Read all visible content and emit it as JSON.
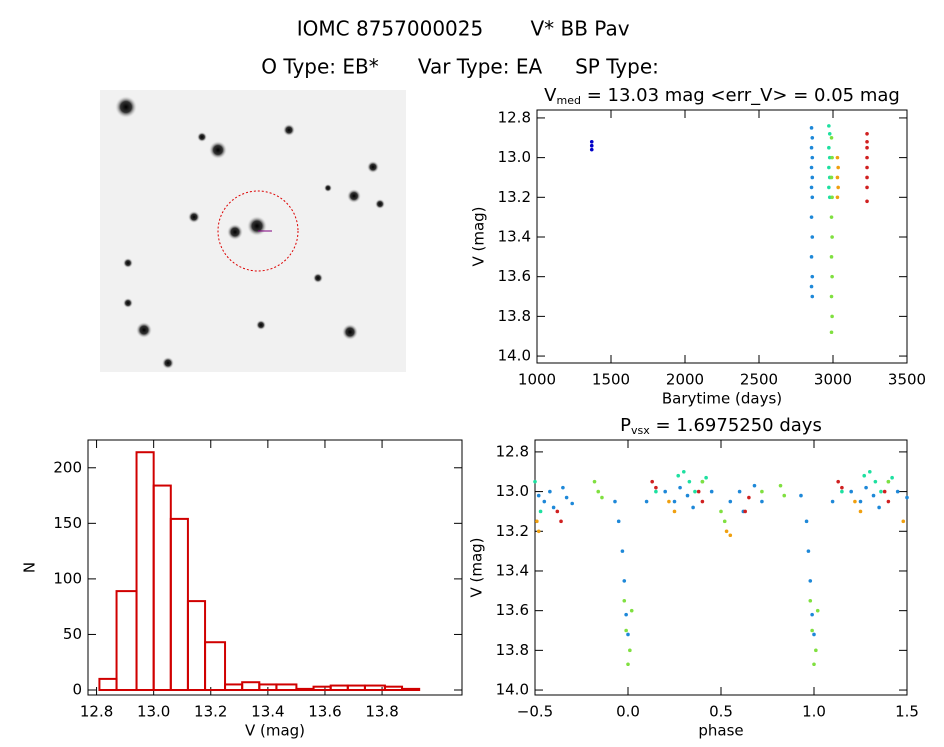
{
  "header": {
    "line1": [
      "IOMC 8757000025",
      "V* BB Pav"
    ],
    "line2": [
      "O Type: EB*",
      "Var Type: EA",
      "SP Type:"
    ]
  },
  "chart_data": [
    {
      "type": "scatter",
      "title": {
        "base": "V",
        "sub": "med",
        "rest": " = 13.03 mag <err_V> = 0.05 mag"
      },
      "xlabel": "Barytime (days)",
      "ylabel": "V (mag)",
      "xlim": [
        1000,
        3500
      ],
      "xticks": [
        1000,
        1500,
        2000,
        2500,
        3000,
        3500
      ],
      "ylim": [
        12.76,
        14.035
      ],
      "y_inverted": true,
      "yticks": [
        12.8,
        {
          "value": 13,
          "label": "13.0"
        },
        13.2,
        13.4,
        13.6,
        13.8,
        {
          "value": 14,
          "label": "14.0"
        }
      ],
      "series": [
        {
          "color": "#0000c8",
          "x": [
            1370,
            1370,
            1370
          ],
          "values": [
            12.92,
            12.94,
            12.96
          ]
        },
        {
          "color": "#1e88d8",
          "x": [
            2855,
            2860,
            2855,
            2860,
            2855,
            2860,
            2855,
            2860,
            2855,
            2860,
            2855,
            2860,
            2855,
            2860
          ],
          "values": [
            12.85,
            12.9,
            12.95,
            13.0,
            13.05,
            13.1,
            13.15,
            13.2,
            13.3,
            13.4,
            13.5,
            13.6,
            13.65,
            13.7
          ]
        },
        {
          "color": "#1ee0a0",
          "x": [
            2972,
            2978,
            2972,
            2978,
            2972,
            2978,
            2972,
            2978
          ],
          "values": [
            12.84,
            12.88,
            12.95,
            13.0,
            13.05,
            13.1,
            13.15,
            13.2
          ]
        },
        {
          "color": "#80e040",
          "x": [
            2990,
            2994,
            2990,
            2994,
            2990,
            2994,
            2990,
            2994,
            2990,
            2994,
            2990
          ],
          "values": [
            12.9,
            13.0,
            13.1,
            13.2,
            13.3,
            13.4,
            13.5,
            13.6,
            13.7,
            13.8,
            13.88
          ]
        },
        {
          "color": "#f0a010",
          "x": [
            3030,
            3035,
            3030,
            3035,
            3030
          ],
          "values": [
            13.0,
            13.05,
            13.1,
            13.15,
            13.2
          ]
        },
        {
          "color": "#d02020",
          "x": [
            3230,
            3230,
            3230,
            3230,
            3230,
            3230,
            3230,
            3230
          ],
          "values": [
            12.88,
            12.92,
            12.95,
            13.0,
            13.05,
            13.1,
            13.15,
            13.22
          ]
        }
      ]
    },
    {
      "type": "histogram",
      "xlabel": "V (mag)",
      "ylabel": "N",
      "color": "#d00000",
      "xlim": [
        12.77,
        14.08
      ],
      "xticks": [
        12.8,
        {
          "value": 13,
          "label": "13.0"
        },
        13.2,
        13.4,
        13.6,
        13.8
      ],
      "ylim": [
        -4.5,
        225
      ],
      "yticks": [
        0,
        50,
        100,
        150,
        200
      ],
      "bins": [
        12.81,
        12.87,
        12.94,
        13.0,
        13.06,
        13.12,
        13.18,
        13.25,
        13.31,
        13.37,
        13.43,
        13.5,
        13.56,
        13.62,
        13.68,
        13.74,
        13.81,
        13.87,
        13.93
      ],
      "values": [
        10,
        89,
        214,
        184,
        154,
        80,
        43,
        5,
        7,
        5,
        5,
        1,
        3,
        4,
        4,
        4,
        3,
        1
      ]
    },
    {
      "type": "scatter",
      "title": {
        "base": "P",
        "sub": "vsx",
        "rest": " = 1.6975250 days"
      },
      "xlabel": "phase",
      "ylabel": "V (mag)",
      "xlim": [
        -0.5,
        1.5
      ],
      "xticks": [
        {
          "value": -0.5,
          "label": "−0.5"
        },
        {
          "value": 0,
          "label": "0.0"
        },
        0.5,
        {
          "value": 1,
          "label": "1.0"
        },
        1.5
      ],
      "ylim": [
        12.74,
        14.025
      ],
      "y_inverted": true,
      "yticks": [
        12.8,
        {
          "value": 13,
          "label": "13.0"
        },
        13.2,
        13.4,
        13.6,
        13.8,
        {
          "value": 14,
          "label": "14.0"
        }
      ],
      "series": [
        {
          "color": "#1e88d8",
          "x": [
            -0.48,
            -0.45,
            -0.42,
            -0.4,
            -0.35,
            -0.33,
            -0.3,
            -0.07,
            -0.05,
            -0.03,
            -0.02,
            -0.01,
            0.0,
            0.1,
            0.2,
            0.25,
            0.28,
            0.32,
            0.35,
            0.45,
            0.55,
            0.6,
            0.62,
            0.68,
            0.72,
            0.93,
            0.96,
            0.97,
            0.98,
            0.99,
            1.0,
            1.1,
            1.2,
            1.25,
            1.28,
            1.32,
            1.35,
            1.45,
            1.5
          ],
          "values": [
            13.02,
            13.05,
            13.0,
            13.08,
            12.98,
            13.03,
            13.06,
            13.05,
            13.15,
            13.3,
            13.45,
            13.62,
            13.72,
            13.05,
            13.0,
            13.05,
            12.98,
            13.02,
            13.08,
            13.0,
            13.05,
            13.0,
            13.1,
            12.97,
            13.05,
            13.02,
            13.15,
            13.3,
            13.45,
            13.62,
            13.72,
            13.05,
            13.0,
            13.05,
            12.98,
            13.02,
            13.08,
            13.0,
            13.03
          ]
        },
        {
          "color": "#1ee0a0",
          "x": [
            -0.5,
            -0.47,
            0.15,
            0.27,
            0.3,
            0.33,
            0.36,
            0.4,
            0.42,
            1.15,
            1.27,
            1.3,
            1.33,
            1.36,
            1.4,
            1.42
          ],
          "values": [
            12.95,
            13.1,
            13.0,
            12.92,
            12.9,
            12.95,
            13.0,
            12.95,
            12.93,
            13.0,
            12.92,
            12.9,
            12.95,
            13.0,
            12.95,
            12.93
          ]
        },
        {
          "color": "#80e040",
          "x": [
            -0.18,
            -0.16,
            -0.14,
            -0.02,
            -0.01,
            0.0,
            0.01,
            0.02,
            0.4,
            0.5,
            0.52,
            0.72,
            0.82,
            0.84,
            0.98,
            0.99,
            1.0,
            1.01,
            1.02,
            1.4
          ],
          "values": [
            12.95,
            13.0,
            13.03,
            13.55,
            13.7,
            13.87,
            13.8,
            13.6,
            12.95,
            13.1,
            13.15,
            13.0,
            12.97,
            13.02,
            13.55,
            13.7,
            13.87,
            13.8,
            13.6,
            12.95
          ]
        },
        {
          "color": "#f0a010",
          "x": [
            -0.49,
            -0.48,
            0.22,
            0.25,
            0.53,
            0.55,
            1.22,
            1.25,
            1.48
          ],
          "values": [
            13.15,
            13.2,
            13.05,
            13.1,
            13.2,
            13.22,
            13.05,
            13.1,
            13.15
          ]
        },
        {
          "color": "#d02020",
          "x": [
            -0.38,
            -0.36,
            0.13,
            0.15,
            0.38,
            0.4,
            0.63,
            0.65,
            1.13,
            1.15,
            1.38,
            1.4
          ],
          "values": [
            13.1,
            13.15,
            12.95,
            12.98,
            13.0,
            13.05,
            13.1,
            13.03,
            12.95,
            12.98,
            13.0,
            13.05
          ]
        }
      ]
    }
  ]
}
